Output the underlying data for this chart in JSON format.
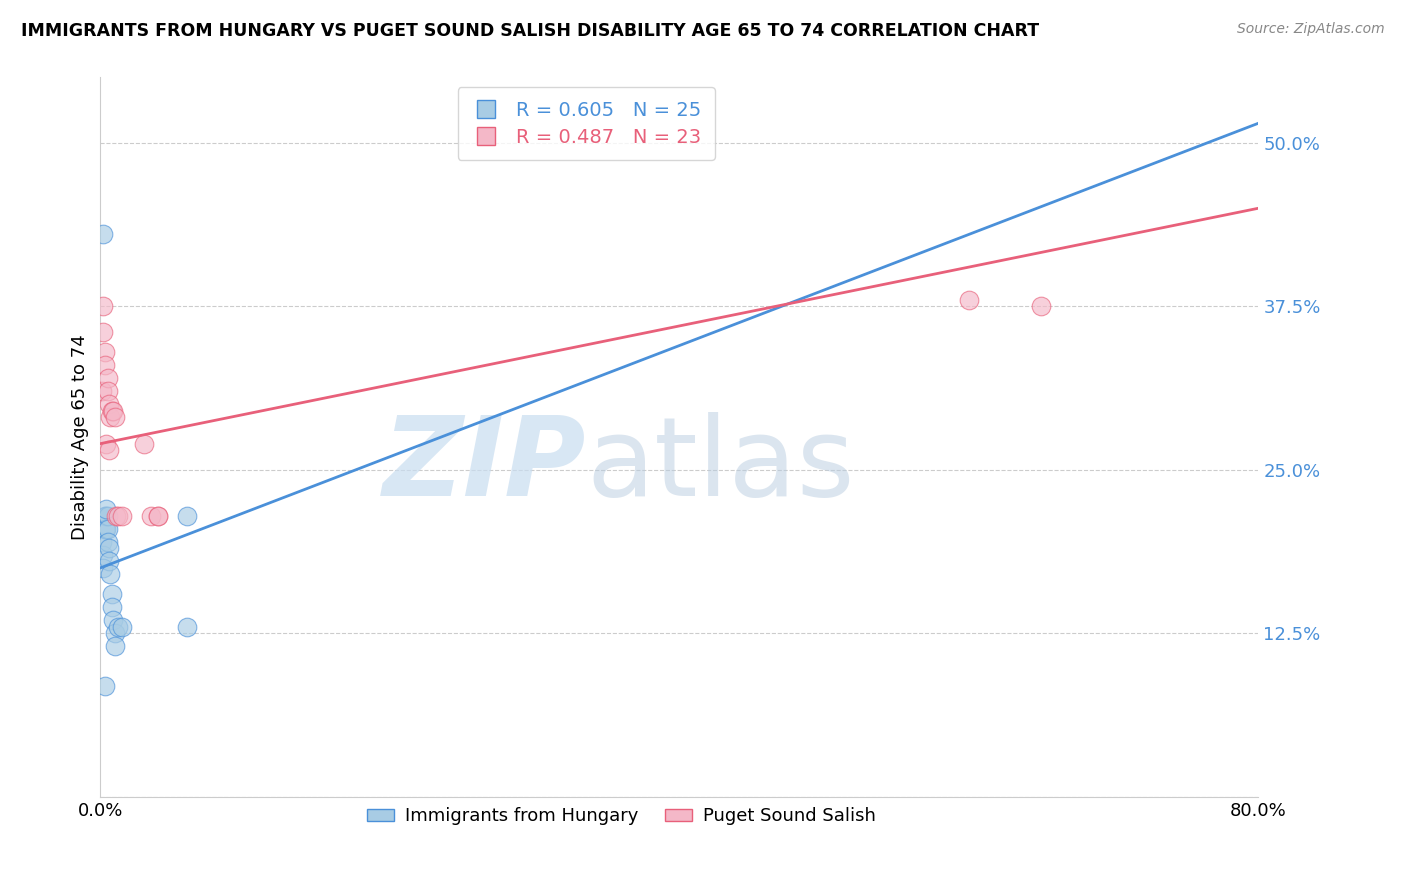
{
  "title": "IMMIGRANTS FROM HUNGARY VS PUGET SOUND SALISH DISABILITY AGE 65 TO 74 CORRELATION CHART",
  "source": "Source: ZipAtlas.com",
  "ylabel": "Disability Age 65 to 74",
  "legend_label1": "Immigrants from Hungary",
  "legend_label2": "Puget Sound Salish",
  "r1": 0.605,
  "n1": 25,
  "r2": 0.487,
  "n2": 23,
  "color_blue": "#a8cce4",
  "color_pink": "#f4b8c8",
  "line_color_blue": "#4a90d9",
  "line_color_pink": "#e8607a",
  "xlim": [
    0,
    0.8
  ],
  "ylim": [
    0,
    0.55
  ],
  "ytick_vals": [
    0.0,
    0.125,
    0.25,
    0.375,
    0.5
  ],
  "ytick_labels": [
    "",
    "12.5%",
    "25.0%",
    "37.5%",
    "50.0%"
  ],
  "xtick_vals": [
    0.0,
    0.1,
    0.2,
    0.3,
    0.4,
    0.5,
    0.6,
    0.7,
    0.8
  ],
  "xtick_labels": [
    "0.0%",
    "",
    "",
    "",
    "",
    "",
    "",
    "",
    "80.0%"
  ],
  "blue_x": [
    0.001,
    0.002,
    0.002,
    0.003,
    0.003,
    0.004,
    0.004,
    0.005,
    0.005,
    0.005,
    0.006,
    0.006,
    0.007,
    0.008,
    0.008,
    0.009,
    0.01,
    0.01,
    0.012,
    0.015,
    0.002,
    0.004,
    0.06,
    0.06,
    0.003
  ],
  "blue_y": [
    0.195,
    0.185,
    0.175,
    0.215,
    0.205,
    0.215,
    0.205,
    0.215,
    0.205,
    0.195,
    0.19,
    0.18,
    0.17,
    0.155,
    0.145,
    0.135,
    0.125,
    0.115,
    0.13,
    0.13,
    0.43,
    0.22,
    0.215,
    0.13,
    0.085
  ],
  "pink_x": [
    0.001,
    0.002,
    0.002,
    0.003,
    0.003,
    0.004,
    0.005,
    0.005,
    0.006,
    0.006,
    0.007,
    0.008,
    0.009,
    0.01,
    0.011,
    0.012,
    0.015,
    0.03,
    0.035,
    0.04,
    0.04,
    0.6,
    0.65
  ],
  "pink_y": [
    0.31,
    0.375,
    0.355,
    0.34,
    0.33,
    0.27,
    0.32,
    0.31,
    0.3,
    0.265,
    0.29,
    0.295,
    0.295,
    0.29,
    0.215,
    0.215,
    0.215,
    0.27,
    0.215,
    0.215,
    0.215,
    0.38,
    0.375
  ],
  "blue_line_x0": 0.0,
  "blue_line_x1": 0.8,
  "blue_line_y0": 0.175,
  "blue_line_y1": 0.515,
  "pink_line_x0": 0.0,
  "pink_line_x1": 0.8,
  "pink_line_y0": 0.27,
  "pink_line_y1": 0.45
}
